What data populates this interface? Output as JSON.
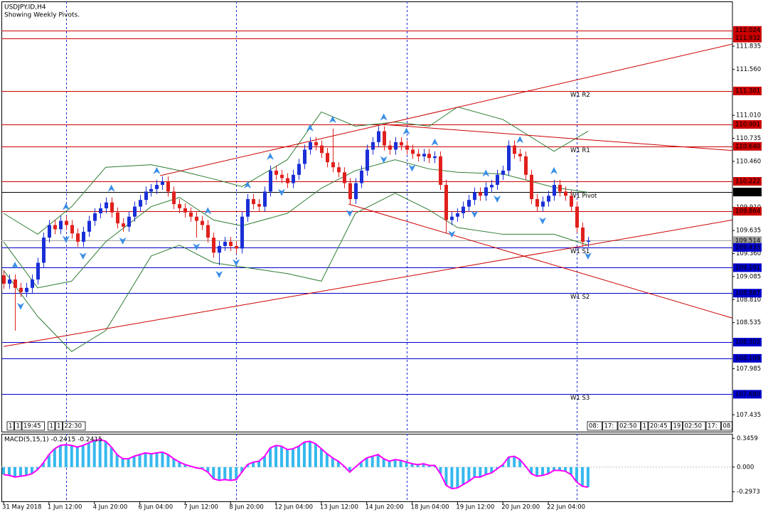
{
  "chart_data": [
    {
      "type": "candlestick",
      "title": "USDJPY.ID,H4",
      "subtitle": "Showing Weekly Pivots.",
      "categories": [
        "31 May 2018",
        null,
        null,
        null,
        null,
        null,
        null,
        null,
        "1 Jun 12:00",
        null,
        null,
        null,
        null,
        null,
        null,
        null,
        "4 Jun 20:00",
        null,
        null,
        null,
        null,
        null,
        null,
        null,
        "6 Jun 04:00",
        null,
        null,
        null,
        null,
        null,
        null,
        null,
        "7 Jun 12:00",
        null,
        null,
        null,
        null,
        null,
        null,
        null,
        "8 Jun 20:00",
        null,
        null,
        null,
        null,
        null,
        null,
        null,
        "12 Jun 04:00",
        null,
        null,
        null,
        null,
        null,
        null,
        null,
        "13 Jun 12:00",
        null,
        null,
        null,
        null,
        null,
        null,
        null,
        "14 Jun 20:00",
        null,
        null,
        null,
        null,
        null,
        null,
        null,
        "18 Jun 04:00",
        null,
        null,
        null,
        null,
        null,
        null,
        null,
        "19 Jun 12:00",
        null,
        null,
        null,
        null,
        null,
        null,
        null,
        "20 Jun 20:00",
        null,
        null,
        null,
        null,
        null,
        null,
        null,
        "22 Jun 04:00",
        null,
        null,
        null,
        null,
        null,
        null,
        null
      ],
      "open": [
        109.1,
        109.0,
        109.05,
        108.95,
        108.9,
        108.95,
        109.05,
        109.25,
        109.55,
        109.7,
        109.65,
        109.75,
        109.7,
        109.6,
        109.5,
        109.62,
        109.75,
        109.84,
        109.9,
        109.97,
        109.85,
        109.72,
        109.68,
        109.8,
        109.92,
        110.0,
        110.1,
        110.13,
        110.18,
        110.22,
        110.1,
        109.95,
        109.9,
        109.85,
        109.8,
        109.75,
        109.7,
        109.55,
        109.37,
        109.45,
        109.5,
        109.45,
        109.42,
        109.8,
        110.01,
        109.95,
        109.92,
        110.1,
        110.35,
        110.3,
        110.26,
        110.2,
        110.3,
        110.43,
        110.6,
        110.69,
        110.65,
        110.56,
        110.45,
        110.39,
        110.33,
        110.2,
        110.01,
        110.2,
        110.35,
        110.6,
        110.69,
        110.82,
        110.65,
        110.6,
        110.69,
        110.65,
        110.6,
        110.55,
        110.52,
        110.55,
        110.5,
        110.52,
        110.18,
        109.76,
        109.8,
        109.84,
        109.92,
        110.0,
        110.09,
        110.05,
        110.15,
        110.18,
        110.3,
        110.35,
        110.65,
        110.55,
        110.52,
        110.3,
        110.01,
        109.92,
        109.98,
        110.05,
        110.18,
        110.1,
        110.05,
        109.92,
        109.67,
        109.5
      ],
      "high": [
        109.16,
        109.11,
        109.11,
        109.01,
        109.01,
        109.11,
        109.31,
        109.61,
        109.76,
        109.76,
        109.81,
        109.81,
        109.76,
        109.66,
        109.68,
        109.81,
        109.9,
        109.96,
        110.03,
        110.03,
        109.91,
        109.78,
        109.86,
        109.98,
        110.06,
        110.16,
        110.19,
        110.24,
        110.28,
        110.28,
        110.16,
        110.01,
        109.96,
        109.91,
        109.86,
        109.81,
        109.76,
        109.61,
        109.51,
        109.56,
        109.56,
        109.51,
        109.86,
        110.07,
        110.07,
        110.01,
        110.16,
        110.41,
        110.41,
        110.36,
        110.32,
        110.36,
        110.49,
        110.66,
        110.75,
        110.75,
        110.71,
        110.62,
        110.85,
        110.45,
        110.39,
        110.26,
        110.26,
        110.41,
        110.66,
        110.75,
        110.88,
        110.88,
        110.71,
        110.75,
        110.75,
        110.71,
        110.66,
        110.61,
        110.61,
        110.61,
        110.58,
        110.58,
        110.24,
        109.86,
        109.9,
        109.98,
        110.06,
        110.15,
        110.15,
        110.21,
        110.24,
        110.36,
        110.41,
        110.71,
        110.71,
        110.61,
        110.58,
        110.36,
        110.07,
        110.04,
        110.11,
        110.24,
        110.24,
        110.16,
        110.11,
        109.98,
        109.73,
        109.56
      ],
      "low": [
        108.94,
        108.94,
        108.44,
        108.84,
        108.84,
        108.89,
        108.99,
        109.19,
        109.49,
        109.59,
        109.59,
        109.64,
        109.54,
        109.44,
        109.44,
        109.56,
        109.69,
        109.78,
        109.84,
        109.79,
        109.66,
        109.62,
        109.62,
        109.74,
        109.86,
        109.94,
        110.04,
        110.07,
        110.12,
        110.04,
        109.89,
        109.84,
        109.79,
        109.74,
        109.55,
        109.64,
        109.49,
        109.31,
        109.22,
        109.39,
        109.39,
        109.36,
        109.36,
        109.74,
        109.89,
        109.86,
        109.86,
        110.04,
        110.24,
        110.2,
        110.14,
        110.14,
        110.24,
        110.37,
        110.54,
        110.59,
        110.5,
        110.39,
        110.33,
        110.27,
        110.14,
        109.95,
        109.95,
        110.14,
        110.29,
        110.54,
        110.63,
        110.59,
        110.54,
        110.54,
        110.59,
        110.54,
        110.49,
        110.46,
        110.46,
        110.44,
        110.44,
        110.12,
        109.6,
        109.7,
        109.74,
        109.78,
        109.86,
        109.94,
        109.99,
        109.99,
        110.09,
        110.12,
        110.24,
        110.29,
        110.49,
        110.46,
        110.24,
        109.95,
        109.86,
        109.86,
        109.92,
        109.99,
        110.04,
        109.99,
        109.86,
        109.61,
        109.44,
        109.44
      ],
      "close": [
        109.0,
        109.05,
        108.95,
        108.9,
        108.95,
        109.05,
        109.25,
        109.55,
        109.7,
        109.65,
        109.75,
        109.7,
        109.6,
        109.5,
        109.62,
        109.75,
        109.84,
        109.9,
        109.97,
        109.85,
        109.72,
        109.68,
        109.8,
        109.92,
        110.0,
        110.1,
        110.13,
        110.18,
        110.22,
        110.1,
        109.95,
        109.9,
        109.85,
        109.8,
        109.75,
        109.7,
        109.55,
        109.37,
        109.45,
        109.5,
        109.45,
        109.42,
        109.8,
        110.01,
        109.95,
        109.92,
        110.1,
        110.35,
        110.3,
        110.26,
        110.2,
        110.3,
        110.43,
        110.6,
        110.69,
        110.65,
        110.56,
        110.45,
        110.39,
        110.33,
        110.2,
        110.01,
        110.2,
        110.35,
        110.6,
        110.69,
        110.82,
        110.65,
        110.6,
        110.69,
        110.65,
        110.6,
        110.55,
        110.52,
        110.55,
        110.5,
        110.52,
        110.18,
        109.76,
        109.8,
        109.84,
        109.92,
        110.0,
        110.09,
        110.05,
        110.15,
        110.18,
        110.3,
        110.35,
        110.65,
        110.55,
        110.52,
        110.3,
        110.01,
        109.92,
        109.98,
        110.05,
        110.18,
        110.1,
        110.05,
        109.92,
        109.67,
        109.5,
        109.514
      ],
      "up_color": "#1a2fd6",
      "down_color": "#e0201c",
      "xlim": [
        -0.63,
        128.45
      ],
      "ylim": [
        107.225,
        112.319
      ],
      "yticks": [
        111.835,
        {
          "value": 111.56,
          "label": "111.560"
        },
        {
          "value": 111.01,
          "label": "111.010"
        },
        110.735,
        {
          "value": 110.46,
          "label": "110.460"
        },
        {
          "value": 109.91,
          "label": "109.910"
        },
        109.635,
        {
          "value": 109.36,
          "label": "109.360"
        },
        109.085,
        {
          "value": 108.81,
          "label": "108.810"
        },
        108.535,
        107.985,
        107.435
      ],
      "vlines": [
        11,
        41,
        71,
        101
      ],
      "levels": [
        {
          "value": 112.024,
          "color": "#cc0000"
        },
        {
          "value": 111.932,
          "color": "#cc0000"
        },
        {
          "value": 111.301,
          "color": "#cc0000",
          "name": "W1 R2"
        },
        {
          "value": 110.901,
          "color": "#cc0000"
        },
        {
          "value": 110.64,
          "label": "110.640",
          "color": "#cc0000",
          "name": "W1 R1"
        },
        {
          "value": 110.222,
          "color": "#cc0000"
        },
        {
          "value": 110.094,
          "color": "#000000",
          "name": "W1 Pivot"
        },
        {
          "value": 109.864,
          "color": "#cc0000"
        },
        {
          "value": 109.514,
          "color": "#a0a0a0"
        },
        {
          "value": 109.433,
          "color": "#0000cc",
          "name": "W1 S1"
        },
        {
          "value": 109.191,
          "color": "#0000cc"
        },
        {
          "value": 108.887,
          "color": "#0000cc",
          "name": "W1 S2"
        },
        {
          "value": 108.302,
          "color": "#0000cc"
        },
        {
          "value": 108.109,
          "color": "#0000cc"
        },
        {
          "value": 107.68,
          "label": "107.680",
          "color": "#0000cc",
          "name": "W1 S3"
        }
      ],
      "bollinger": {
        "color": "#2e7d32",
        "index": [
          0,
          6,
          12,
          18,
          26,
          31,
          37,
          42,
          50,
          56,
          62,
          69,
          75,
          80,
          88,
          97,
          103
        ],
        "upper": [
          109.84,
          109.59,
          109.92,
          110.39,
          110.42,
          110.35,
          110.25,
          110.16,
          110.48,
          111.05,
          110.88,
          110.93,
          110.88,
          111.11,
          110.96,
          110.58,
          110.82
        ],
        "middle": [
          109.5,
          108.95,
          109.03,
          109.5,
          109.92,
          110.03,
          109.76,
          109.69,
          109.84,
          110.14,
          110.35,
          110.48,
          110.37,
          110.33,
          110.31,
          110.15,
          110.09
        ],
        "lower": [
          109.16,
          108.61,
          108.19,
          108.44,
          109.33,
          109.46,
          109.25,
          109.2,
          109.12,
          109.03,
          109.84,
          110.08,
          109.88,
          109.67,
          109.59,
          109.59,
          109.46
        ]
      },
      "trendlines": [
        {
          "x": [
            0,
            128.4
          ],
          "y": [
            108.25,
            109.76
          ]
        },
        {
          "x": [
            27.6,
            128.4
          ],
          "y": [
            110.29,
            111.86
          ]
        },
        {
          "x": [
            60.8,
            128.4
          ],
          "y": [
            109.95,
            108.59
          ]
        },
        {
          "x": [
            67,
            128.4
          ],
          "y": [
            110.9,
            110.59
          ]
        }
      ],
      "trend_color": "#cc0000",
      "fractals": {
        "color": "#3a8ee6",
        "up": [
          2,
          11,
          19,
          27,
          36,
          43,
          47,
          54,
          58,
          67,
          71,
          76,
          85,
          91,
          97
        ],
        "down": [
          3,
          11,
          14,
          21,
          34,
          38,
          41,
          49,
          61,
          67,
          72,
          79,
          83,
          87,
          95,
          103
        ]
      },
      "footer_left": [
        "1",
        "1",
        "19:45",
        "1",
        "1",
        "22:30"
      ],
      "footer_right": [
        "08:",
        "17:",
        "02:50",
        "1",
        "20:45",
        "19",
        "02:50",
        "17:",
        "08"
      ]
    },
    {
      "type": "bar",
      "title": "MACD(5,15,1) -0.2415 -0.2415",
      "values": [
        -0.09,
        -0.1,
        -0.12,
        -0.11,
        -0.1,
        -0.08,
        -0.03,
        0.05,
        0.15,
        0.22,
        0.26,
        0.27,
        0.26,
        0.24,
        0.26,
        0.29,
        0.32,
        0.33,
        0.31,
        0.24,
        0.15,
        0.1,
        0.1,
        0.13,
        0.15,
        0.17,
        0.16,
        0.17,
        0.18,
        0.15,
        0.1,
        0.06,
        0.03,
        0.01,
        -0.01,
        -0.02,
        -0.06,
        -0.14,
        -0.16,
        -0.15,
        -0.16,
        -0.15,
        -0.06,
        0.03,
        0.06,
        0.07,
        0.13,
        0.23,
        0.26,
        0.25,
        0.21,
        0.22,
        0.25,
        0.3,
        0.31,
        0.28,
        0.22,
        0.16,
        0.11,
        0.07,
        0.01,
        -0.06,
        0.0,
        0.06,
        0.11,
        0.13,
        0.15,
        0.1,
        0.07,
        0.09,
        0.08,
        0.06,
        0.04,
        0.03,
        0.04,
        0.02,
        0.02,
        -0.08,
        -0.22,
        -0.26,
        -0.25,
        -0.21,
        -0.17,
        -0.12,
        -0.12,
        -0.09,
        -0.07,
        -0.02,
        0.03,
        0.12,
        0.13,
        0.09,
        0.01,
        -0.08,
        -0.11,
        -0.1,
        -0.08,
        -0.04,
        -0.04,
        -0.05,
        -0.09,
        -0.18,
        -0.23,
        -0.2415
      ],
      "color": "#35b8ee",
      "line_color": "#ff00ff",
      "xlim": [
        -0.63,
        128.45
      ],
      "ylim": [
        -0.42,
        0.4
      ],
      "yticks": [
        0.3459,
        {
          "value": 0,
          "label": "0.000"
        },
        -0.2973
      ]
    }
  ]
}
